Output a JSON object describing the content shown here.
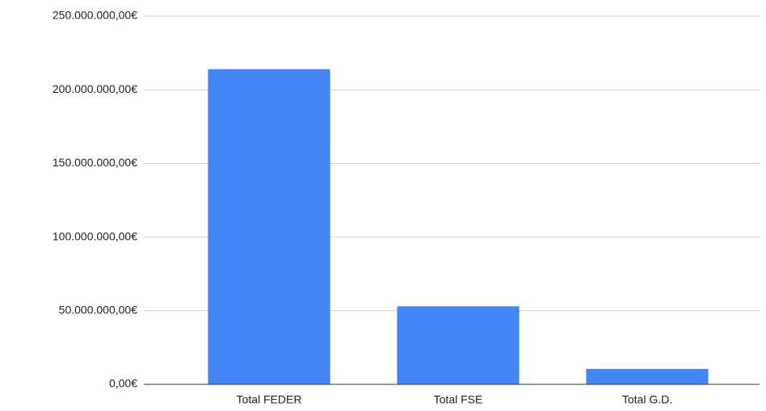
{
  "chart_data": {
    "type": "bar",
    "categories": [
      "Total FEDER",
      "Total FSE",
      "Total G.D."
    ],
    "values": [
      214000000,
      53000000,
      10500000
    ],
    "color": "#4285f4",
    "ylim": [
      0,
      250000000
    ],
    "yticks": [
      {
        "value": 0,
        "label": "0,00€"
      },
      {
        "value": 50000000,
        "label": "50.000.000,00€"
      },
      {
        "value": 100000000,
        "label": "100.000.000,00€"
      },
      {
        "value": 150000000,
        "label": "150.000.000,00€"
      },
      {
        "value": 200000000,
        "label": "200.000.000,00€"
      },
      {
        "value": 250000000,
        "label": "250.000.000,00€"
      }
    ],
    "grid": true
  }
}
